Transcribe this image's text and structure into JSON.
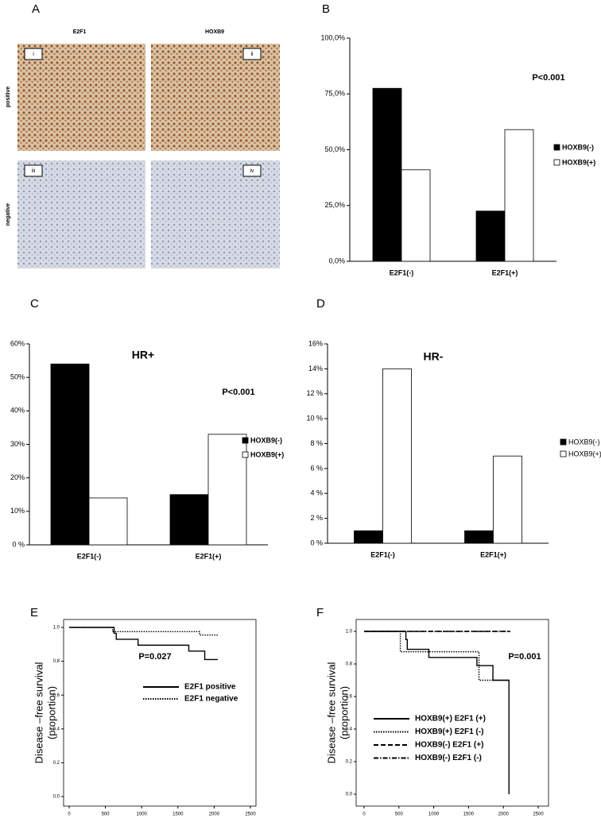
{
  "panel_a": {
    "panel": "A",
    "columns": [
      "E2F1",
      "HOXB9"
    ],
    "rows": [
      "positive",
      "negative"
    ],
    "tags": [
      "i",
      "ii",
      "iii",
      "iv"
    ]
  },
  "chart_data": [
    {
      "type": "bar",
      "panel": "B",
      "annotation": "P<0.001",
      "categories": [
        "E2F1(-)",
        "E2F1(+)"
      ],
      "series": [
        {
          "name": "HOXB9(-)",
          "color": "#000000",
          "values": [
            77.5,
            22.5
          ]
        },
        {
          "name": "HOXB9(+)",
          "color": "#ffffff",
          "values": [
            41,
            59
          ]
        }
      ],
      "ylim": [
        0,
        100
      ],
      "yticks": [
        {
          "value": 0,
          "label": "0,0%"
        },
        {
          "value": 25,
          "label": "25,0%"
        },
        {
          "value": 50,
          "label": "50,0%"
        },
        {
          "value": 75,
          "label": "75,0%"
        },
        {
          "value": 100,
          "label": "100,0%"
        }
      ]
    },
    {
      "type": "bar",
      "panel": "C",
      "title": "HR+",
      "annotation": "P<0.001",
      "categories": [
        "E2F1(-)",
        "E2F1(+)"
      ],
      "series": [
        {
          "name": "HOXB9(-)",
          "color": "#000000",
          "values": [
            54,
            15
          ]
        },
        {
          "name": "HOXB9(+)",
          "color": "#ffffff",
          "values": [
            14,
            33
          ]
        }
      ],
      "ylim": [
        0,
        60
      ],
      "yticks": [
        {
          "value": 0,
          "label": "0 %"
        },
        {
          "value": 10,
          "label": "10%"
        },
        {
          "value": 20,
          "label": "20%"
        },
        {
          "value": 30,
          "label": "30%"
        },
        {
          "value": 40,
          "label": "40%"
        },
        {
          "value": 50,
          "label": "50%"
        },
        {
          "value": 60,
          "label": "60%"
        }
      ]
    },
    {
      "type": "bar",
      "panel": "D",
      "title": "HR-",
      "categories": [
        "E2F1(-)",
        "E2F1(+)"
      ],
      "series": [
        {
          "name": "HOXB9(-)",
          "color": "#000000",
          "values": [
            1,
            1
          ]
        },
        {
          "name": "HOXB9(+)",
          "color": "#ffffff",
          "values": [
            14,
            7
          ]
        }
      ],
      "ylim": [
        0,
        16
      ],
      "yticks": [
        {
          "value": 0,
          "label": "0 %"
        },
        {
          "value": 2,
          "label": "2 %"
        },
        {
          "value": 4,
          "label": "4 %"
        },
        {
          "value": 6,
          "label": "6 %"
        },
        {
          "value": 8,
          "label": "8 %"
        },
        {
          "value": 10,
          "label": "10 %"
        },
        {
          "value": 12,
          "label": "12 %"
        },
        {
          "value": 14,
          "label": "14%"
        },
        {
          "value": 16,
          "label": "16%"
        }
      ]
    },
    {
      "type": "line",
      "panel": "E",
      "annotation": "P=0.027",
      "ylabel": [
        "Disease –free survival",
        "(proportion)"
      ],
      "series": [
        {
          "name": "E2F1 positive",
          "color": "#000000",
          "dash": "solid",
          "x": [
            0,
            620,
            620,
            650,
            650,
            950,
            950,
            1650,
            1650,
            1870,
            1870,
            2050
          ],
          "values": [
            1.0,
            1.0,
            0.965,
            0.965,
            0.93,
            0.93,
            0.895,
            0.895,
            0.86,
            0.86,
            0.81,
            0.81
          ]
        },
        {
          "name": "E2F1 negative",
          "color": "#000000",
          "dash": "dotted",
          "x": [
            0,
            600,
            600,
            1800,
            1800,
            2050
          ],
          "values": [
            1.0,
            1.0,
            0.975,
            0.975,
            0.955,
            0.955
          ]
        }
      ],
      "xlim": [
        0,
        2500
      ],
      "xticks": [
        0,
        500,
        1000,
        1500,
        2000,
        2500
      ],
      "ylim": [
        0,
        1
      ],
      "yticks": [
        {
          "value": 0,
          "label": "0.0"
        },
        0.2,
        0.4,
        0.6,
        0.8,
        {
          "value": 1,
          "label": "1.0"
        }
      ]
    },
    {
      "type": "line",
      "panel": "F",
      "annotation": "P=0.001",
      "ylabel": [
        "Disease –free survival",
        "(proportion)"
      ],
      "series": [
        {
          "name": "HOXB9(+) E2F1 (+)",
          "color": "#000000",
          "dash": "solid",
          "x": [
            0,
            600,
            600,
            620,
            620,
            930,
            930,
            1620,
            1620,
            1850,
            1850,
            2080,
            2080
          ],
          "values": [
            1.0,
            1.0,
            0.95,
            0.95,
            0.89,
            0.89,
            0.84,
            0.84,
            0.79,
            0.79,
            0.7,
            0.7,
            0.0
          ]
        },
        {
          "name": "HOXB9(+) E2F1 (-)",
          "color": "#000000",
          "dash": "dotted",
          "x": [
            0,
            520,
            520,
            1650,
            1650,
            2080
          ],
          "values": [
            1.0,
            1.0,
            0.875,
            0.875,
            0.7,
            0.7
          ]
        },
        {
          "name": "HOXB9(-) E2F1 (+)",
          "color": "#000000",
          "dash": "dashed",
          "x": [
            0,
            2100
          ],
          "values": [
            1.0,
            1.0
          ]
        },
        {
          "name": "HOXB9(-) E2F1 (-)",
          "color": "#000000",
          "dash": "dashdot",
          "x": [
            0,
            2100
          ],
          "values": [
            1.0,
            1.0
          ]
        }
      ],
      "xlim": [
        0,
        2500
      ],
      "xticks": [
        0,
        500,
        1000,
        1500,
        2000,
        2500
      ],
      "ylim": [
        0,
        1
      ],
      "yticks": [
        {
          "value": 0,
          "label": "0.0"
        },
        0.2,
        0.4,
        0.6,
        0.8,
        {
          "value": 1,
          "label": "1.0"
        }
      ]
    }
  ]
}
